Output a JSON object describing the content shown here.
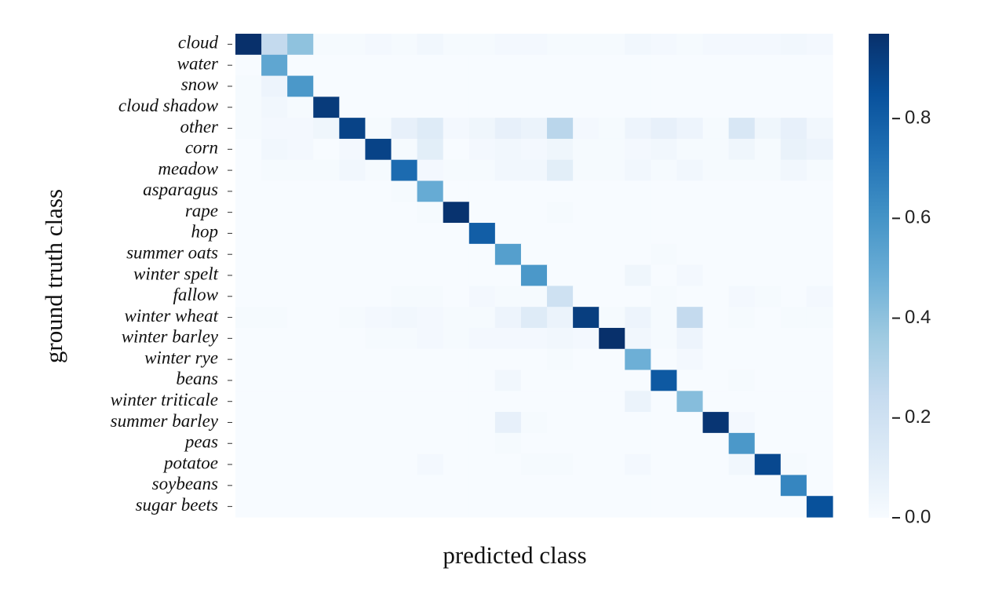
{
  "chart_data": {
    "type": "heatmap",
    "title": "",
    "xlabel": "predicted class",
    "ylabel": "ground truth class",
    "row_labels": [
      "cloud",
      "water",
      "snow",
      "cloud shadow",
      "other",
      "corn",
      "meadow",
      "asparagus",
      "rape",
      "hop",
      "summer oats",
      "winter spelt",
      "fallow",
      "winter wheat",
      "winter barley",
      "winter rye",
      "beans",
      "winter triticale",
      "summer barley",
      "peas",
      "potatoe",
      "soybeans",
      "sugar beets"
    ],
    "col_labels_shown": false,
    "colorbar": {
      "min": 0.0,
      "max": 0.97,
      "ticks": [
        0.0,
        0.2,
        0.4,
        0.6,
        0.8
      ],
      "tick_labels": [
        "0.0",
        "0.2",
        "0.4",
        "0.6",
        "0.8"
      ]
    },
    "colors": {
      "low": "#f7fbff",
      "high": "#08306b"
    },
    "values": [
      [
        0.97,
        0.25,
        0.4,
        0.01,
        0.01,
        0.02,
        0.01,
        0.03,
        0.01,
        0.01,
        0.02,
        0.02,
        0.01,
        0.01,
        0.01,
        0.03,
        0.02,
        0.01,
        0.02,
        0.02,
        0.02,
        0.03,
        0.02
      ],
      [
        0.0,
        0.52,
        0.0,
        0.0,
        0.0,
        0.0,
        0.0,
        0.0,
        0.0,
        0.0,
        0.0,
        0.0,
        0.0,
        0.0,
        0.0,
        0.0,
        0.0,
        0.0,
        0.0,
        0.0,
        0.0,
        0.0,
        0.0
      ],
      [
        0.01,
        0.05,
        0.58,
        0.0,
        0.0,
        0.0,
        0.0,
        0.0,
        0.0,
        0.0,
        0.0,
        0.0,
        0.0,
        0.0,
        0.0,
        0.0,
        0.0,
        0.0,
        0.0,
        0.0,
        0.0,
        0.0,
        0.0
      ],
      [
        0.01,
        0.03,
        0.01,
        0.93,
        0.0,
        0.0,
        0.0,
        0.0,
        0.0,
        0.0,
        0.0,
        0.0,
        0.0,
        0.0,
        0.0,
        0.0,
        0.0,
        0.0,
        0.0,
        0.0,
        0.0,
        0.0,
        0.0
      ],
      [
        0.01,
        0.02,
        0.02,
        0.04,
        0.9,
        0.01,
        0.08,
        0.12,
        0.02,
        0.04,
        0.08,
        0.06,
        0.28,
        0.02,
        0.01,
        0.05,
        0.08,
        0.05,
        0.01,
        0.15,
        0.04,
        0.08,
        0.03
      ],
      [
        0.0,
        0.03,
        0.02,
        0.0,
        0.02,
        0.9,
        0.01,
        0.1,
        0.0,
        0.02,
        0.03,
        0.02,
        0.04,
        0.01,
        0.01,
        0.02,
        0.03,
        0.01,
        0.01,
        0.04,
        0.01,
        0.07,
        0.05
      ],
      [
        0.0,
        0.01,
        0.01,
        0.01,
        0.03,
        0.01,
        0.75,
        0.02,
        0.01,
        0.01,
        0.03,
        0.03,
        0.1,
        0.01,
        0.01,
        0.03,
        0.01,
        0.03,
        0.01,
        0.01,
        0.01,
        0.03,
        0.01
      ],
      [
        0.0,
        0.0,
        0.0,
        0.0,
        0.0,
        0.0,
        0.01,
        0.5,
        0.0,
        0.0,
        0.0,
        0.0,
        0.0,
        0.0,
        0.0,
        0.0,
        0.0,
        0.0,
        0.0,
        0.0,
        0.0,
        0.0,
        0.0
      ],
      [
        0.0,
        0.0,
        0.0,
        0.0,
        0.0,
        0.0,
        0.0,
        0.01,
        0.96,
        0.0,
        0.0,
        0.0,
        0.01,
        0.0,
        0.0,
        0.0,
        0.0,
        0.0,
        0.0,
        0.0,
        0.0,
        0.0,
        0.0
      ],
      [
        0.0,
        0.0,
        0.0,
        0.0,
        0.0,
        0.0,
        0.0,
        0.0,
        0.0,
        0.8,
        0.0,
        0.0,
        0.0,
        0.0,
        0.0,
        0.0,
        0.0,
        0.0,
        0.0,
        0.0,
        0.0,
        0.0,
        0.0
      ],
      [
        0.0,
        0.0,
        0.0,
        0.0,
        0.0,
        0.0,
        0.0,
        0.0,
        0.0,
        0.0,
        0.55,
        0.0,
        0.0,
        0.0,
        0.0,
        0.0,
        0.01,
        0.0,
        0.0,
        0.0,
        0.0,
        0.0,
        0.0
      ],
      [
        0.0,
        0.0,
        0.0,
        0.0,
        0.0,
        0.0,
        0.0,
        0.0,
        0.0,
        0.0,
        0.0,
        0.58,
        0.0,
        0.0,
        0.0,
        0.04,
        0.0,
        0.02,
        0.0,
        0.0,
        0.0,
        0.0,
        0.0
      ],
      [
        0.0,
        0.0,
        0.0,
        0.0,
        0.0,
        0.0,
        0.01,
        0.01,
        0.0,
        0.02,
        0.01,
        0.01,
        0.2,
        0.0,
        0.0,
        0.0,
        0.01,
        0.0,
        0.0,
        0.02,
        0.01,
        0.0,
        0.02
      ],
      [
        0.01,
        0.01,
        0.0,
        0.0,
        0.01,
        0.02,
        0.03,
        0.02,
        0.01,
        0.01,
        0.05,
        0.12,
        0.06,
        0.92,
        0.01,
        0.05,
        0.01,
        0.25,
        0.0,
        0.01,
        0.0,
        0.01,
        0.01
      ],
      [
        0.0,
        0.0,
        0.0,
        0.0,
        0.0,
        0.01,
        0.01,
        0.02,
        0.01,
        0.02,
        0.02,
        0.02,
        0.03,
        0.02,
        0.97,
        0.03,
        0.01,
        0.05,
        0.0,
        0.0,
        0.0,
        0.0,
        0.0
      ],
      [
        0.0,
        0.0,
        0.0,
        0.0,
        0.0,
        0.0,
        0.0,
        0.0,
        0.0,
        0.0,
        0.0,
        0.0,
        0.01,
        0.0,
        0.0,
        0.48,
        0.0,
        0.02,
        0.0,
        0.0,
        0.0,
        0.0,
        0.0
      ],
      [
        0.0,
        0.0,
        0.0,
        0.0,
        0.0,
        0.0,
        0.0,
        0.0,
        0.0,
        0.0,
        0.03,
        0.0,
        0.0,
        0.0,
        0.0,
        0.0,
        0.82,
        0.0,
        0.0,
        0.01,
        0.0,
        0.0,
        0.0
      ],
      [
        0.0,
        0.0,
        0.0,
        0.0,
        0.0,
        0.0,
        0.0,
        0.0,
        0.0,
        0.0,
        0.0,
        0.0,
        0.0,
        0.0,
        0.0,
        0.06,
        0.0,
        0.42,
        0.0,
        0.0,
        0.0,
        0.0,
        0.0
      ],
      [
        0.0,
        0.0,
        0.0,
        0.0,
        0.0,
        0.0,
        0.0,
        0.0,
        0.0,
        0.0,
        0.08,
        0.01,
        0.0,
        0.0,
        0.0,
        0.0,
        0.0,
        0.0,
        0.95,
        0.02,
        0.0,
        0.0,
        0.0
      ],
      [
        0.0,
        0.0,
        0.0,
        0.0,
        0.0,
        0.0,
        0.0,
        0.0,
        0.0,
        0.0,
        0.01,
        0.0,
        0.0,
        0.0,
        0.0,
        0.0,
        0.0,
        0.0,
        0.0,
        0.58,
        0.0,
        0.0,
        0.0
      ],
      [
        0.0,
        0.0,
        0.0,
        0.0,
        0.0,
        0.0,
        0.0,
        0.02,
        0.0,
        0.0,
        0.0,
        0.01,
        0.01,
        0.0,
        0.0,
        0.02,
        0.0,
        0.0,
        0.0,
        0.03,
        0.88,
        0.01,
        0.0
      ],
      [
        0.0,
        0.0,
        0.0,
        0.0,
        0.0,
        0.0,
        0.0,
        0.0,
        0.0,
        0.0,
        0.0,
        0.0,
        0.0,
        0.0,
        0.0,
        0.0,
        0.0,
        0.0,
        0.0,
        0.0,
        0.0,
        0.65,
        0.0
      ],
      [
        0.0,
        0.0,
        0.0,
        0.0,
        0.0,
        0.0,
        0.0,
        0.0,
        0.0,
        0.0,
        0.0,
        0.0,
        0.0,
        0.0,
        0.0,
        0.0,
        0.0,
        0.0,
        0.0,
        0.0,
        0.0,
        0.0,
        0.85
      ]
    ]
  }
}
